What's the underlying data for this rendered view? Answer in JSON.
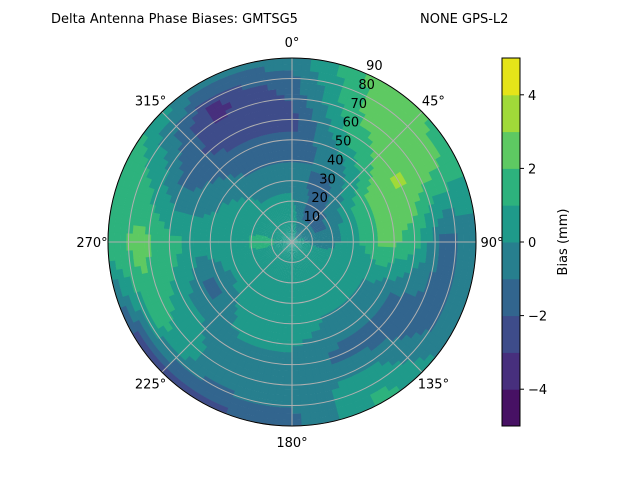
{
  "chart_data": {
    "type": "heatmap",
    "subtype": "polar-filled-contour",
    "title_left": "Delta Antenna Phase Biases: GMTSG5",
    "title_right": "NONE GPS-L2",
    "angular_axis": {
      "zero_location": "top",
      "direction": "clockwise",
      "tick_labels": [
        "0°",
        "45°",
        "90°",
        "135°",
        "180°",
        "225°",
        "270°",
        "315°"
      ],
      "ticks": [
        0,
        45,
        90,
        135,
        180,
        225,
        270,
        315
      ]
    },
    "radial_axis": {
      "range": [
        0,
        90
      ],
      "ticks": [
        10,
        20,
        30,
        40,
        50,
        60,
        70,
        80,
        90
      ],
      "tick_labels": [
        "10",
        "20",
        "30",
        "40",
        "50",
        "60",
        "70",
        "80",
        "90"
      ],
      "label_angle": 22.5
    },
    "grid": true,
    "azimuths": [
      0,
      30,
      60,
      90,
      120,
      150,
      180,
      210,
      240,
      270,
      300,
      330
    ],
    "radii": [
      0,
      15,
      30,
      45,
      60,
      75,
      90
    ],
    "values": [
      [
        0.5,
        0.5,
        -0.5,
        -1.5,
        -2.5,
        -1.5,
        -0.5
      ],
      [
        0.5,
        -1.5,
        -1.5,
        -0.5,
        1.5,
        2.5,
        2.5
      ],
      [
        0.5,
        -1.5,
        0.5,
        2.5,
        3.2,
        2.5,
        1.5
      ],
      [
        0.5,
        -0.5,
        0.5,
        2.5,
        1.5,
        -1.5,
        -0.5
      ],
      [
        0.5,
        0.5,
        0.5,
        -0.5,
        -1.5,
        -1.5,
        -0.5
      ],
      [
        0.5,
        0.5,
        0.5,
        -0.5,
        -1.5,
        0.5,
        1.5
      ],
      [
        0.5,
        0.5,
        0.5,
        0.5,
        -0.5,
        -0.5,
        -1.5
      ],
      [
        0.5,
        0.5,
        0.5,
        0.5,
        -0.5,
        -0.5,
        -2.5
      ],
      [
        0.5,
        0.5,
        0.5,
        -1.5,
        0.5,
        1.5,
        -2.5
      ],
      [
        0.5,
        1.5,
        0.5,
        0.5,
        1.5,
        2.5,
        1.5
      ],
      [
        0.5,
        0.5,
        0.5,
        -0.5,
        -1.5,
        0.5,
        1.5
      ],
      [
        0.5,
        0.5,
        -0.5,
        -1.5,
        -2.5,
        -3.5,
        -0.5
      ]
    ],
    "colorbar": {
      "label": "Bias (mm)",
      "range": [
        -5,
        5
      ],
      "levels": [
        -5,
        -4,
        -3,
        -2,
        -1,
        0,
        1,
        2,
        3,
        4,
        5
      ],
      "ticks": [
        -4,
        -2,
        0,
        2,
        4
      ],
      "tick_labels": [
        "−4",
        "−2",
        "0",
        "2",
        "4"
      ],
      "colors": [
        "#471164",
        "#472f7d",
        "#3e4c8a",
        "#32658e",
        "#277f8e",
        "#1f9a8a",
        "#2db27d",
        "#5ec962",
        "#a0da39",
        "#e5e419"
      ],
      "colormap": "viridis"
    }
  }
}
